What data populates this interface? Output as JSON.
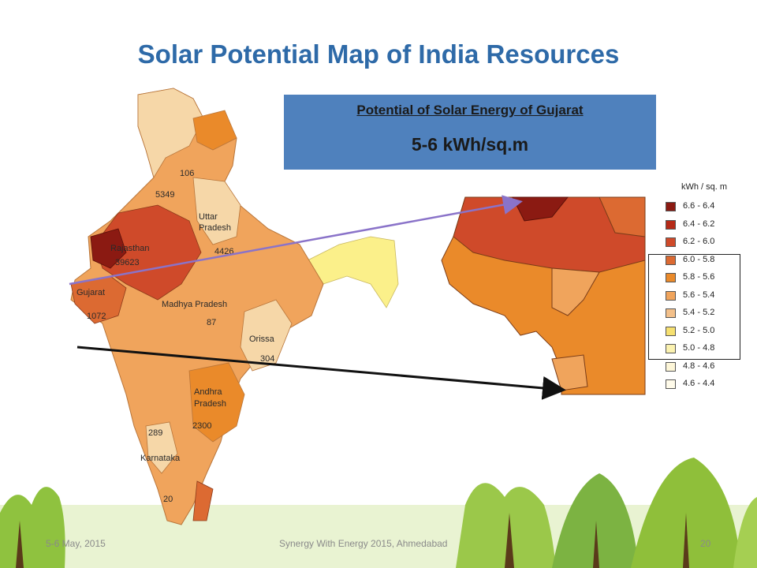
{
  "slide": {
    "title": "Solar Potential Map of India Resources",
    "footer_date": "5-6 May, 2015",
    "footer_event": "Synergy With Energy 2015, Ahmedabad",
    "page_number": "20"
  },
  "info_box": {
    "heading": "Potential of Solar Energy of Gujarat",
    "value": "5-6 kWh/sq.m",
    "color": "#4f81bd"
  },
  "legend": {
    "title": "kWh / sq. m",
    "items": [
      {
        "label": "6.6 - 6.4",
        "color": "#8b1a12"
      },
      {
        "label": "6.4 - 6.2",
        "color": "#b52a17"
      },
      {
        "label": "6.2 - 6.0",
        "color": "#cf4a2a"
      },
      {
        "label": "6.0 - 5.8",
        "color": "#dc6a32"
      },
      {
        "label": "5.8 - 5.6",
        "color": "#ea8a2a"
      },
      {
        "label": "5.6 - 5.4",
        "color": "#f0a45c"
      },
      {
        "label": "5.4 - 5.2",
        "color": "#f3c08a"
      },
      {
        "label": "5.2 - 5.0",
        "color": "#f6e070"
      },
      {
        "label": "5.0 - 4.8",
        "color": "#fbf2b0"
      },
      {
        "label": "4.8 - 4.6",
        "color": "#fdf6d8"
      },
      {
        "label": "4.6 - 4.4",
        "color": "#fffbea"
      }
    ]
  },
  "map_labels": {
    "l106": "106",
    "l5349": "5349",
    "uttar": "Uttar",
    "pradesh_u": "Pradesh",
    "l4426": "4426",
    "rajasthan": "Rajasthan",
    "l39623": "39623",
    "gujarat": "Gujarat",
    "l1072": "1072",
    "madhya": "Madhya Pradesh",
    "l87": "87",
    "orissa": "Orissa",
    "l304": "304",
    "andhra": "Andhra",
    "pradesh_a": "Pradesh",
    "l2300": "2300",
    "l289": "289",
    "karnataka": "Karnataka",
    "l20": "20"
  }
}
